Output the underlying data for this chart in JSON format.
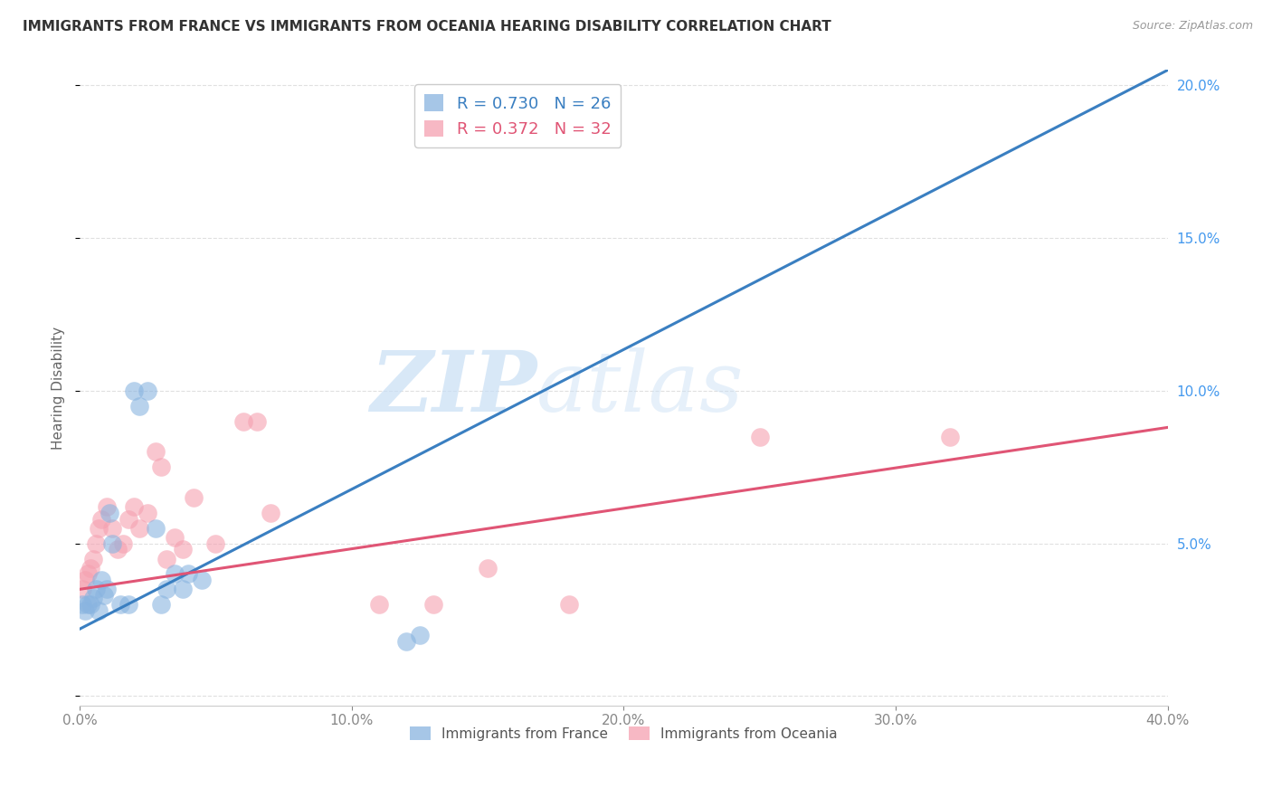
{
  "title": "IMMIGRANTS FROM FRANCE VS IMMIGRANTS FROM OCEANIA HEARING DISABILITY CORRELATION CHART",
  "source": "Source: ZipAtlas.com",
  "ylabel": "Hearing Disability",
  "france_x": [
    0.001,
    0.002,
    0.003,
    0.004,
    0.005,
    0.006,
    0.007,
    0.008,
    0.009,
    0.01,
    0.011,
    0.012,
    0.015,
    0.018,
    0.02,
    0.022,
    0.025,
    0.028,
    0.03,
    0.032,
    0.035,
    0.038,
    0.04,
    0.045,
    0.12,
    0.125
  ],
  "france_y": [
    0.03,
    0.028,
    0.03,
    0.03,
    0.032,
    0.035,
    0.028,
    0.038,
    0.033,
    0.035,
    0.06,
    0.05,
    0.03,
    0.03,
    0.1,
    0.095,
    0.1,
    0.055,
    0.03,
    0.035,
    0.04,
    0.035,
    0.04,
    0.038,
    0.018,
    0.02
  ],
  "oceania_x": [
    0.001,
    0.002,
    0.003,
    0.004,
    0.005,
    0.006,
    0.007,
    0.008,
    0.01,
    0.012,
    0.014,
    0.016,
    0.018,
    0.02,
    0.022,
    0.025,
    0.028,
    0.03,
    0.032,
    0.035,
    0.038,
    0.042,
    0.05,
    0.06,
    0.065,
    0.07,
    0.11,
    0.13,
    0.15,
    0.18,
    0.25,
    0.32
  ],
  "oceania_y": [
    0.035,
    0.038,
    0.04,
    0.042,
    0.045,
    0.05,
    0.055,
    0.058,
    0.062,
    0.055,
    0.048,
    0.05,
    0.058,
    0.062,
    0.055,
    0.06,
    0.08,
    0.075,
    0.045,
    0.052,
    0.048,
    0.065,
    0.05,
    0.09,
    0.09,
    0.06,
    0.03,
    0.03,
    0.042,
    0.03,
    0.085,
    0.085
  ],
  "france_color": "#89b4e0",
  "oceania_color": "#f5a0b0",
  "france_line_color": "#3a7fc1",
  "oceania_line_color": "#e05575",
  "france_R": 0.73,
  "france_N": 26,
  "oceania_R": 0.372,
  "oceania_N": 32,
  "france_line_x0": 0.0,
  "france_line_y0": 0.022,
  "france_line_x1": 0.4,
  "france_line_y1": 0.205,
  "oceania_line_x0": 0.0,
  "oceania_line_y0": 0.035,
  "oceania_line_x1": 0.4,
  "oceania_line_y1": 0.088,
  "xlim": [
    0.0,
    0.4
  ],
  "ylim": [
    -0.003,
    0.205
  ],
  "watermark_zip": "ZIP",
  "watermark_atlas": "atlas",
  "background_color": "#ffffff",
  "title_fontsize": 11,
  "source_fontsize": 9,
  "grid_color": "#e0e0e0",
  "tick_color": "#888888"
}
